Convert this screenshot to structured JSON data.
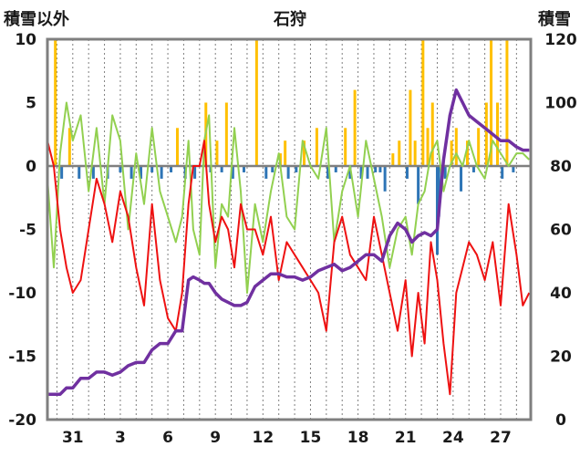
{
  "chart_data": {
    "type": "line",
    "title": "石狩",
    "left_axis_label": "積雪以外",
    "right_axis_label": "積雪",
    "y_left": {
      "min": -20,
      "max": 10,
      "ticks": [
        "10",
        "5",
        "0",
        "-5",
        "-10",
        "-15",
        "-20"
      ]
    },
    "y_right": {
      "min": 0,
      "max": 120,
      "ticks": [
        "120",
        "100",
        "80",
        "60",
        "40",
        "20",
        "0"
      ]
    },
    "x_day_span": [
      29.4,
      28.9
    ],
    "x_tick_labels": [
      "31",
      "3",
      "6",
      "9",
      "12",
      "15",
      "18",
      "21",
      "24",
      "27"
    ],
    "grid": "vertical dotted daily",
    "zero_line": true,
    "colors": {
      "temperature": "#ee1111",
      "wind": "#92d050",
      "snow_depth": "#7030a0",
      "precip_positive": "#ffc000",
      "precip_negative": "#2e75b6",
      "frame": "#7f7f7f"
    },
    "series": [
      {
        "key": "temperature",
        "axis": "left",
        "x": [
          29.4,
          29.8,
          30.2,
          30.6,
          31.0,
          31.5,
          32.0,
          32.5,
          33.0,
          33.5,
          34.0,
          34.5,
          35.0,
          35.5,
          36.0,
          36.5,
          37.0,
          37.5,
          37.9,
          38.3,
          38.6,
          39.0,
          39.3,
          39.6,
          40.0,
          40.4,
          40.8,
          41.2,
          41.6,
          42.0,
          42.5,
          43.0,
          43.5,
          44.0,
          44.5,
          45.0,
          45.5,
          46.0,
          46.5,
          47.0,
          47.5,
          48.0,
          48.5,
          49.0,
          49.5,
          50.0,
          50.5,
          51.0,
          51.5,
          52.0,
          52.4,
          52.8,
          53.2,
          53.6,
          54.0,
          54.4,
          54.8,
          55.2,
          55.6,
          56.0,
          56.5,
          57.0,
          57.5,
          58.0,
          58.5,
          59.0,
          59.4,
          59.8
        ],
        "values": [
          2,
          0,
          -5,
          -8,
          -10,
          -9,
          -5,
          -1,
          -3,
          -6,
          -2,
          -4,
          -8,
          -11,
          -3,
          -9,
          -12,
          -13,
          -10,
          -3,
          0,
          0,
          2,
          -3,
          -6,
          -4,
          -5,
          -8,
          -3,
          -5,
          -5,
          -7,
          -4,
          -9,
          -6,
          -7,
          -8,
          -9,
          -10,
          -13,
          -6,
          -4,
          -7,
          -8,
          -9,
          -4,
          -7,
          -10,
          -13,
          -9,
          -15,
          -10,
          -14,
          -6,
          -9,
          -14,
          -18,
          -10,
          -8,
          -6,
          -7,
          -9,
          -6,
          -11,
          -3,
          -7,
          -11,
          -10
        ]
      },
      {
        "key": "wind",
        "axis": "left",
        "x": [
          29.4,
          29.8,
          30.2,
          30.6,
          31.0,
          31.5,
          32.0,
          32.5,
          33.0,
          33.5,
          34.0,
          34.5,
          35.0,
          35.5,
          36.0,
          36.5,
          37.0,
          37.5,
          37.9,
          38.3,
          38.6,
          39.0,
          39.3,
          39.6,
          40.0,
          40.4,
          40.8,
          41.2,
          41.6,
          42.0,
          42.5,
          43.0,
          43.5,
          44.0,
          44.5,
          45.0,
          45.5,
          46.0,
          46.5,
          47.0,
          47.5,
          48.0,
          48.5,
          49.0,
          49.5,
          50.0,
          50.5,
          51.0,
          51.5,
          52.0,
          52.4,
          52.8,
          53.2,
          53.6,
          54.0,
          54.4,
          54.8,
          55.2,
          55.6,
          56.0,
          56.5,
          57.0,
          57.5,
          58.0,
          58.5,
          59.0,
          59.4,
          59.8
        ],
        "values": [
          -1,
          -8,
          1,
          5,
          2,
          4,
          -2,
          3,
          -3,
          4,
          2,
          -5,
          1,
          -3,
          3,
          -2,
          -4,
          -6,
          -4,
          2,
          -5,
          -7,
          2,
          4,
          -8,
          -3,
          -4,
          3,
          -2,
          -10,
          -3,
          -6,
          -2,
          1,
          -4,
          -5,
          2,
          0,
          -1,
          3,
          -6,
          -2,
          0,
          -4,
          2,
          -1,
          -4,
          -8,
          -5,
          -4,
          -7,
          -3,
          -2,
          1,
          2,
          -2,
          0,
          1,
          0,
          2,
          0,
          -1,
          2,
          1,
          0,
          1,
          1,
          0.5
        ]
      },
      {
        "key": "snow_depth",
        "axis": "right",
        "x": [
          29.4,
          29.8,
          30.2,
          30.6,
          31.0,
          31.5,
          32.0,
          32.5,
          33.0,
          33.5,
          34.0,
          34.5,
          35.0,
          35.5,
          36.0,
          36.5,
          37.0,
          37.5,
          37.9,
          38.3,
          38.6,
          39.0,
          39.3,
          39.6,
          40.0,
          40.4,
          40.8,
          41.2,
          41.6,
          42.0,
          42.5,
          43.0,
          43.5,
          44.0,
          44.5,
          45.0,
          45.5,
          46.0,
          46.5,
          47.0,
          47.5,
          48.0,
          48.5,
          49.0,
          49.5,
          50.0,
          50.5,
          51.0,
          51.5,
          52.0,
          52.4,
          52.8,
          53.2,
          53.6,
          54.0,
          54.4,
          54.8,
          55.2,
          55.6,
          56.0,
          56.5,
          57.0,
          57.5,
          58.0,
          58.5,
          59.0,
          59.4,
          59.8
        ],
        "values": [
          8,
          8,
          8,
          10,
          10,
          13,
          13,
          15,
          15,
          14,
          15,
          17,
          18,
          18,
          22,
          24,
          24,
          28,
          28,
          44,
          45,
          44,
          43,
          43,
          40,
          38,
          37,
          36,
          36,
          37,
          42,
          44,
          46,
          46,
          45,
          45,
          44,
          45,
          47,
          48,
          49,
          47,
          48,
          50,
          52,
          52,
          50,
          58,
          62,
          60,
          56,
          58,
          59,
          58,
          60,
          82,
          96,
          104,
          100,
          96,
          94,
          92,
          90,
          88,
          88,
          86,
          85,
          85
        ]
      },
      {
        "key": "precip",
        "axis": "left",
        "bars": true,
        "x": [
          29.9,
          30.3,
          30.8,
          31.4,
          32.3,
          33.2,
          34.0,
          34.7,
          35.3,
          36.0,
          36.6,
          37.2,
          37.6,
          38.1,
          38.7,
          39.4,
          39.7,
          40.1,
          40.4,
          40.7,
          41.1,
          41.8,
          42.6,
          43.2,
          43.6,
          44.1,
          44.4,
          44.6,
          45.1,
          45.6,
          46.4,
          47.1,
          47.6,
          48.2,
          48.5,
          48.8,
          49.2,
          49.6,
          50.1,
          50.4,
          50.7,
          51.2,
          51.6,
          52.1,
          52.3,
          52.6,
          52.8,
          53.1,
          53.4,
          53.7,
          54.0,
          54.1,
          54.5,
          54.9,
          55.2,
          55.5,
          55.9,
          56.3,
          56.6,
          57.1,
          57.4,
          57.8,
          58.1,
          58.4,
          58.8
        ],
        "values": [
          10,
          -1,
          3,
          -1,
          -1,
          -1,
          -0.5,
          -1,
          -1,
          -0.5,
          -1,
          -0.5,
          3,
          -1,
          -1,
          5,
          -0.5,
          2,
          -0.5,
          5,
          -1,
          -0.5,
          10,
          -1,
          -0.5,
          1,
          2,
          -1,
          -0.5,
          2,
          3,
          -1,
          -0.5,
          3,
          -1,
          6,
          -1,
          -1,
          -0.5,
          -0.5,
          -2,
          1,
          2,
          -1,
          6,
          2,
          -3,
          10,
          3,
          5,
          -7,
          -4,
          -1,
          2,
          3,
          -2,
          2,
          -0.5,
          3,
          5,
          10,
          5,
          -1,
          10,
          -0.5
        ]
      }
    ]
  }
}
